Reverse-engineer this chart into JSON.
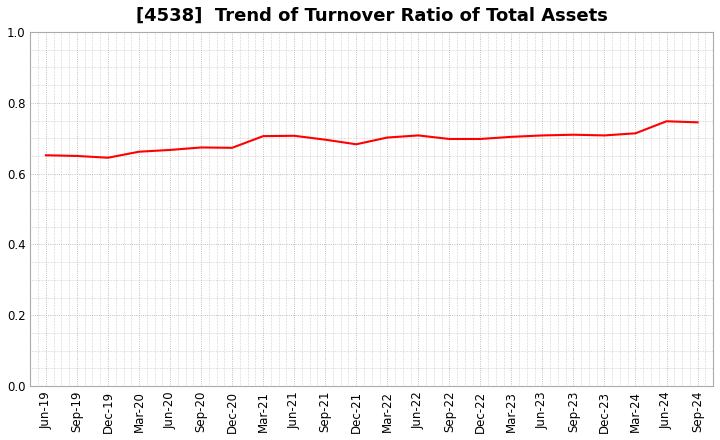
{
  "title": "[4538]  Trend of Turnover Ratio of Total Assets",
  "line_color": "#FF0000",
  "line_width": 1.5,
  "background_color": "#FFFFFF",
  "grid_color": "#AAAAAA",
  "ylim": [
    0.0,
    1.0
  ],
  "yticks": [
    0.0,
    0.2,
    0.4,
    0.6,
    0.8,
    1.0
  ],
  "labels": [
    "Jun-19",
    "Sep-19",
    "Dec-19",
    "Mar-20",
    "Jun-20",
    "Sep-20",
    "Dec-20",
    "Mar-21",
    "Jun-21",
    "Sep-21",
    "Dec-21",
    "Mar-22",
    "Jun-22",
    "Sep-22",
    "Dec-22",
    "Mar-23",
    "Jun-23",
    "Sep-23",
    "Dec-23",
    "Mar-24",
    "Jun-24",
    "Sep-24"
  ],
  "values": [
    0.652,
    0.65,
    0.645,
    0.662,
    0.667,
    0.674,
    0.673,
    0.706,
    0.707,
    0.696,
    0.683,
    0.702,
    0.708,
    0.698,
    0.698,
    0.704,
    0.708,
    0.71,
    0.708,
    0.714,
    0.748,
    0.745
  ],
  "title_fontsize": 13,
  "tick_fontsize": 8.5
}
